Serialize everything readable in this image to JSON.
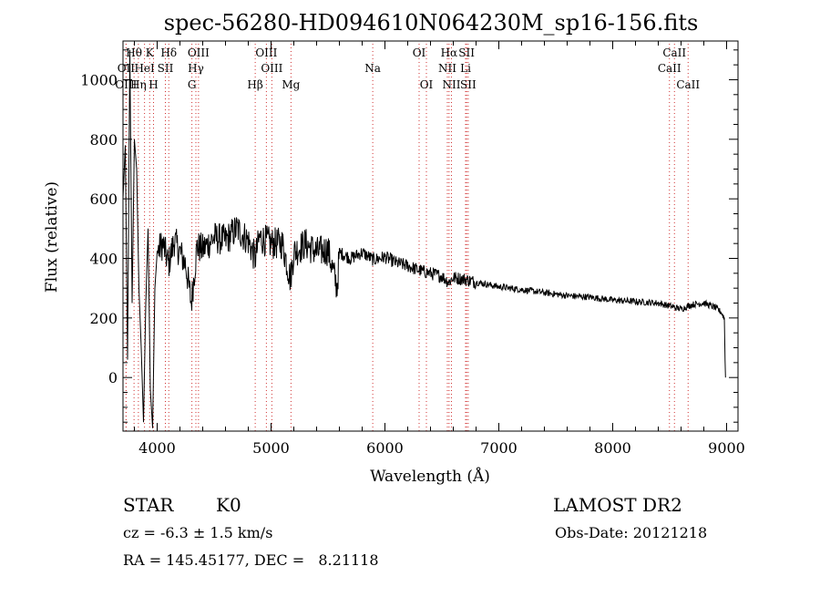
{
  "chart_data": {
    "type": "line",
    "title": "spec-56280-HD094610N064230M_sp16-156.fits",
    "xlabel": "Wavelength (Å)",
    "ylabel": "Flux (relative)",
    "xlim": [
      3700,
      9100
    ],
    "ylim": [
      -180,
      1130
    ],
    "x_ticks": [
      4000,
      5000,
      6000,
      7000,
      8000,
      9000
    ],
    "y_ticks": [
      0,
      200,
      400,
      600,
      800,
      1000
    ],
    "spectrum_anchors": [
      {
        "x": 3700,
        "y": 600
      },
      {
        "x": 3720,
        "y": 780
      },
      {
        "x": 3740,
        "y": 60
      },
      {
        "x": 3760,
        "y": 1100
      },
      {
        "x": 3780,
        "y": 250
      },
      {
        "x": 3800,
        "y": 800
      },
      {
        "x": 3820,
        "y": 700
      },
      {
        "x": 3840,
        "y": 300
      },
      {
        "x": 3860,
        "y": 100
      },
      {
        "x": 3880,
        "y": -150
      },
      {
        "x": 3900,
        "y": 250
      },
      {
        "x": 3920,
        "y": 500
      },
      {
        "x": 3940,
        "y": -40
      },
      {
        "x": 3960,
        "y": -170
      },
      {
        "x": 3980,
        "y": 300
      },
      {
        "x": 4000,
        "y": 420
      },
      {
        "x": 4050,
        "y": 450
      },
      {
        "x": 4100,
        "y": 380
      },
      {
        "x": 4150,
        "y": 460
      },
      {
        "x": 4200,
        "y": 420
      },
      {
        "x": 4250,
        "y": 380
      },
      {
        "x": 4300,
        "y": 250
      },
      {
        "x": 4350,
        "y": 440
      },
      {
        "x": 4400,
        "y": 430
      },
      {
        "x": 4500,
        "y": 470
      },
      {
        "x": 4600,
        "y": 460
      },
      {
        "x": 4700,
        "y": 500
      },
      {
        "x": 4800,
        "y": 460
      },
      {
        "x": 4860,
        "y": 400
      },
      {
        "x": 4900,
        "y": 470
      },
      {
        "x": 5000,
        "y": 450
      },
      {
        "x": 5100,
        "y": 450
      },
      {
        "x": 5170,
        "y": 330
      },
      {
        "x": 5200,
        "y": 420
      },
      {
        "x": 5300,
        "y": 450
      },
      {
        "x": 5400,
        "y": 420
      },
      {
        "x": 5500,
        "y": 430
      },
      {
        "x": 5580,
        "y": 300
      },
      {
        "x": 5600,
        "y": 420
      },
      {
        "x": 5700,
        "y": 400
      },
      {
        "x": 5800,
        "y": 420
      },
      {
        "x": 5900,
        "y": 395
      },
      {
        "x": 6000,
        "y": 405
      },
      {
        "x": 6100,
        "y": 385
      },
      {
        "x": 6200,
        "y": 375
      },
      {
        "x": 6300,
        "y": 360
      },
      {
        "x": 6400,
        "y": 350
      },
      {
        "x": 6500,
        "y": 340
      },
      {
        "x": 6560,
        "y": 320
      },
      {
        "x": 6600,
        "y": 335
      },
      {
        "x": 6700,
        "y": 330
      },
      {
        "x": 6800,
        "y": 320
      },
      {
        "x": 7000,
        "y": 305
      },
      {
        "x": 7200,
        "y": 295
      },
      {
        "x": 7400,
        "y": 285
      },
      {
        "x": 7600,
        "y": 275
      },
      {
        "x": 7800,
        "y": 270
      },
      {
        "x": 8000,
        "y": 260
      },
      {
        "x": 8200,
        "y": 255
      },
      {
        "x": 8400,
        "y": 250
      },
      {
        "x": 8500,
        "y": 240
      },
      {
        "x": 8600,
        "y": 230
      },
      {
        "x": 8700,
        "y": 245
      },
      {
        "x": 8800,
        "y": 250
      },
      {
        "x": 8900,
        "y": 235
      },
      {
        "x": 8950,
        "y": 220
      },
      {
        "x": 8980,
        "y": 200
      },
      {
        "x": 8990,
        "y": 0
      }
    ],
    "spectral_lines": [
      {
        "label": "Hθ",
        "x": 3797,
        "row": 1
      },
      {
        "label": "K",
        "x": 3934,
        "row": 1
      },
      {
        "label": "Hδ",
        "x": 4102,
        "row": 1
      },
      {
        "label": "OIII",
        "x": 4363,
        "row": 1
      },
      {
        "label": "OIII",
        "x": 4959,
        "row": 1
      },
      {
        "label": "OI",
        "x": 6300,
        "row": 1
      },
      {
        "label": "Hα",
        "x": 6563,
        "row": 1
      },
      {
        "label": "SII",
        "x": 6717,
        "row": 1
      },
      {
        "label": "CaII",
        "x": 8542,
        "row": 1
      },
      {
        "label": "OII",
        "x": 3727,
        "row": 2
      },
      {
        "label": "HeI",
        "x": 3889,
        "row": 2
      },
      {
        "label": "SII",
        "x": 4072,
        "row": 2
      },
      {
        "label": "Hγ",
        "x": 4340,
        "row": 2
      },
      {
        "label": "OIII",
        "x": 5007,
        "row": 2
      },
      {
        "label": "NII",
        "x": 6548,
        "row": 2
      },
      {
        "label": "Li",
        "x": 6708,
        "row": 2
      },
      {
        "label": "CaII",
        "x": 8498,
        "row": 2
      },
      {
        "label": "OIII",
        "x": 3727,
        "row": 3
      },
      {
        "label": "Hη",
        "x": 3835,
        "row": 3
      },
      {
        "label": "H",
        "x": 3968,
        "row": 3
      },
      {
        "label": "G",
        "x": 4305,
        "row": 3
      },
      {
        "label": "Hβ",
        "x": 4861,
        "row": 3
      },
      {
        "label": "Mg",
        "x": 5175,
        "row": 3
      },
      {
        "label": "Na",
        "x": 5893,
        "row": 2
      },
      {
        "label": "OI",
        "x": 6364,
        "row": 3
      },
      {
        "label": "NII",
        "x": 6584,
        "row": 3
      },
      {
        "label": "SII",
        "x": 6731,
        "row": 3
      },
      {
        "label": "CaII",
        "x": 8662,
        "row": 3
      }
    ],
    "grid": false,
    "colors": {
      "line": "#000000",
      "marker": "#d03030",
      "background": "#ffffff"
    }
  },
  "info": {
    "object_class": "STAR",
    "subclass": "K0",
    "survey": "LAMOST DR2",
    "redshift": "cz = -6.3 ± 1.5 km/s",
    "obs_date": "Obs-Date: 20121218",
    "coords": "RA = 145.45177, DEC =   8.21118"
  }
}
